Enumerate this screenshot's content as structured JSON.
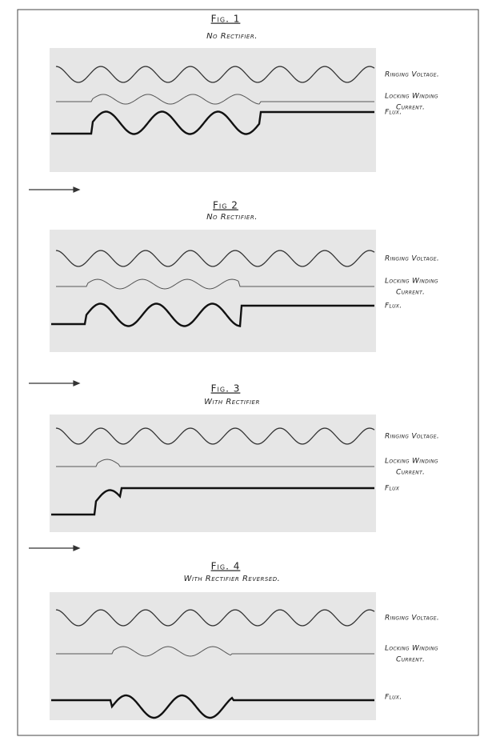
{
  "figures": [
    {
      "title": "Fig. 1",
      "subtitle": "No Rectifier.",
      "labels": [
        "Ringing Voltage.",
        "Locking Winding",
        "Current.",
        "Flux."
      ]
    },
    {
      "title": "Fig 2",
      "subtitle": "No Rectifier.",
      "labels": [
        "Ringing Voltage.",
        "Locking Winding",
        "Current.",
        "Flux."
      ]
    },
    {
      "title": "Fig. 3",
      "subtitle": "With Rectifier",
      "labels": [
        "Ringing Voltage.",
        "Locking Winding",
        "Current.",
        "Flux"
      ]
    },
    {
      "title": "Fig. 4",
      "subtitle": "With Rectifier Reversed.",
      "labels": [
        "Ringing Voltage.",
        "Locking Winding",
        "Current.",
        "Flux."
      ]
    }
  ]
}
